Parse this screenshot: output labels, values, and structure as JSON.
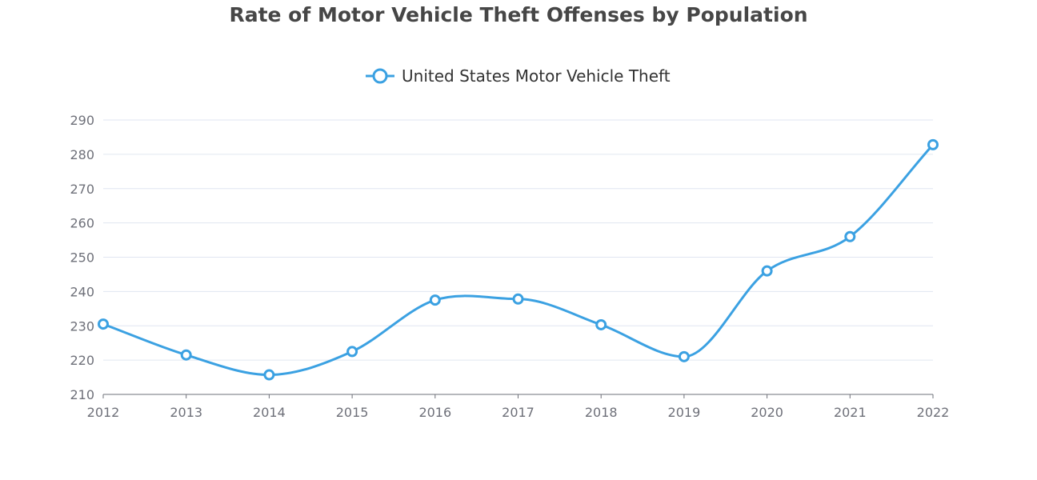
{
  "chart_data": {
    "type": "line",
    "title": "Rate of Motor Vehicle Theft Offenses by Population",
    "xlabel": "",
    "ylabel": "",
    "categories": [
      "2012",
      "2013",
      "2014",
      "2015",
      "2016",
      "2017",
      "2018",
      "2019",
      "2020",
      "2021",
      "2022"
    ],
    "series": [
      {
        "name": "United States Motor Vehicle Theft",
        "values": [
          230.5,
          221.5,
          215.7,
          222.5,
          237.5,
          237.8,
          230.3,
          221.0,
          246.0,
          256.0,
          282.8
        ],
        "color": "#3ba1e2",
        "smooth": true,
        "marker": "empty-circle"
      }
    ],
    "ylim": [
      210,
      290
    ],
    "yticks": [
      "210",
      "220",
      "230",
      "240",
      "250",
      "260",
      "270",
      "280",
      "290"
    ],
    "grid": true,
    "legend_position": "top-center"
  }
}
